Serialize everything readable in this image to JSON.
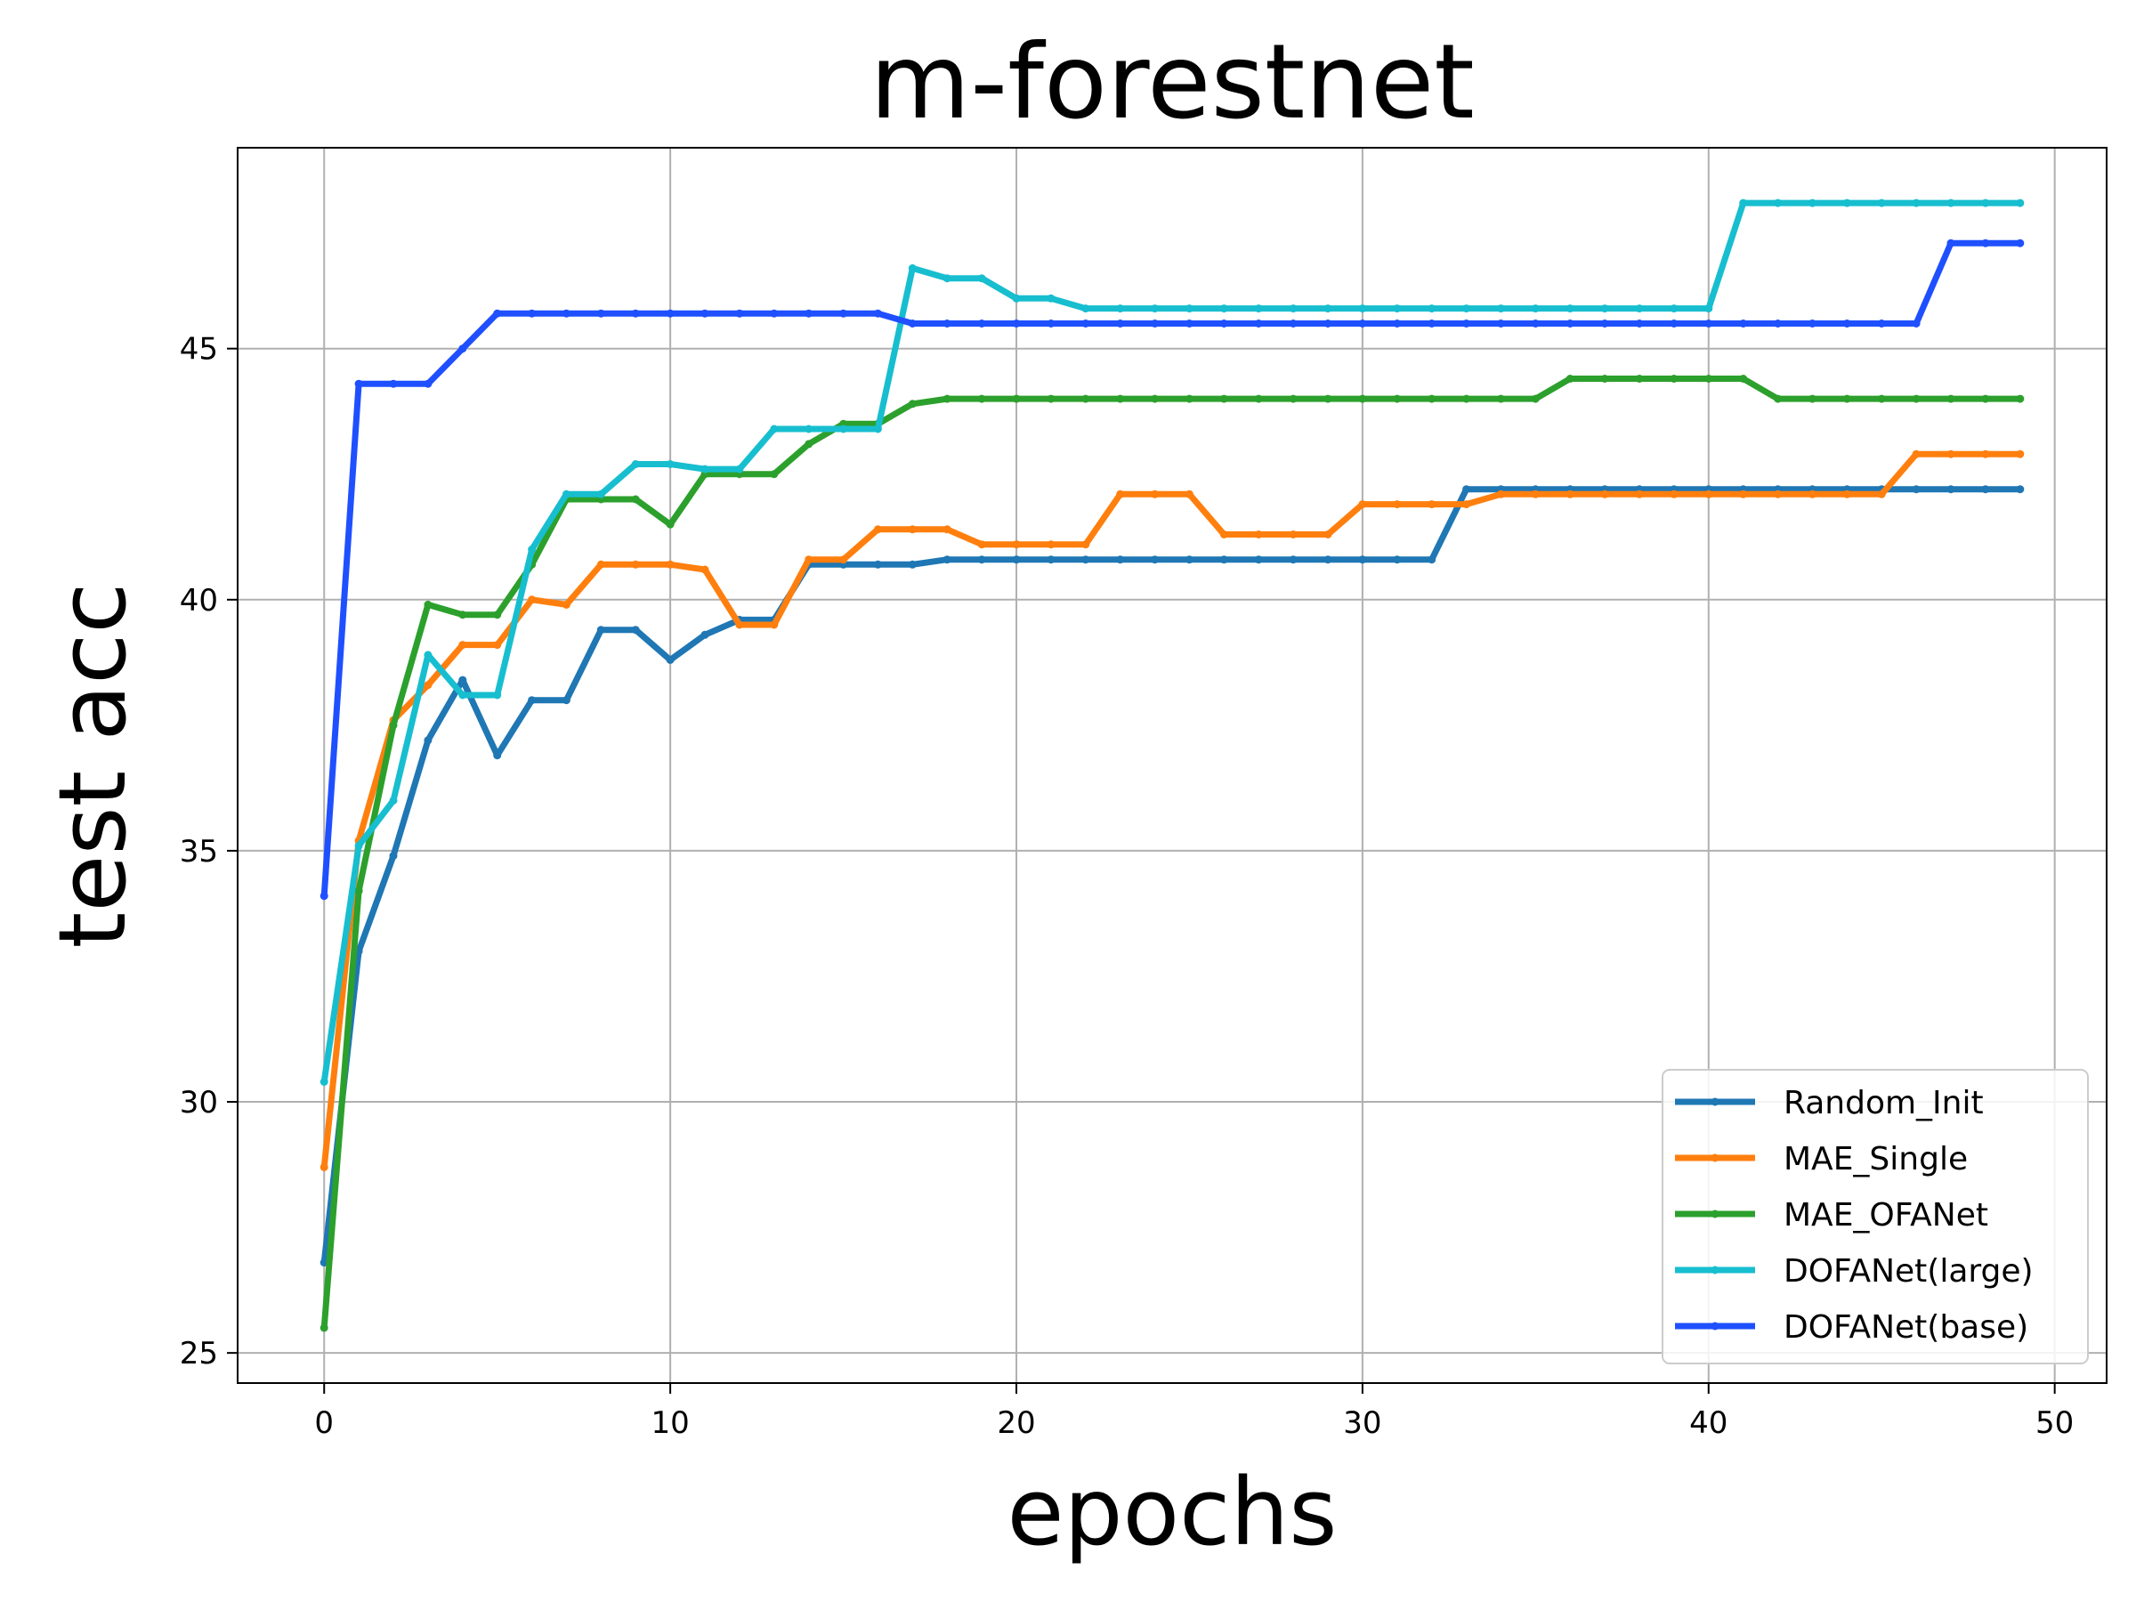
{
  "chart_data": {
    "type": "line",
    "title": "m-forestnet",
    "xlabel": "epochs",
    "ylabel": "test acc",
    "xlim": [
      -2.5,
      51.5
    ],
    "ylim": [
      24.4,
      49.0
    ],
    "xticks": [
      0,
      10,
      20,
      30,
      40,
      50
    ],
    "yticks": [
      25,
      30,
      35,
      40,
      45
    ],
    "grid": true,
    "legend_position": "lower-right",
    "x": [
      0,
      1,
      2,
      3,
      4,
      5,
      6,
      7,
      8,
      9,
      10,
      11,
      12,
      13,
      14,
      15,
      16,
      17,
      18,
      19,
      20,
      21,
      22,
      23,
      24,
      25,
      26,
      27,
      28,
      29,
      30,
      31,
      32,
      33,
      34,
      35,
      36,
      37,
      38,
      39,
      40,
      41,
      42,
      43,
      44,
      45,
      46,
      47,
      48,
      49
    ],
    "series": [
      {
        "name": "Random_Init",
        "color": "#1f77b4",
        "values": [
          26.8,
          33.0,
          34.9,
          37.2,
          38.4,
          36.9,
          38.0,
          38.0,
          39.4,
          39.4,
          38.8,
          39.3,
          39.6,
          39.6,
          40.7,
          40.7,
          40.7,
          40.7,
          40.8,
          40.8,
          40.8,
          40.8,
          40.8,
          40.8,
          40.8,
          40.8,
          40.8,
          40.8,
          40.8,
          40.8,
          40.8,
          40.8,
          40.8,
          42.2,
          42.2,
          42.2,
          42.2,
          42.2,
          42.2,
          42.2,
          42.2,
          42.2,
          42.2,
          42.2,
          42.2,
          42.2,
          42.2,
          42.2,
          42.2,
          42.2
        ]
      },
      {
        "name": "MAE_Single",
        "color": "#ff7f0e",
        "values": [
          28.7,
          35.2,
          37.6,
          38.3,
          39.1,
          39.1,
          40.0,
          39.9,
          40.7,
          40.7,
          40.7,
          40.6,
          39.5,
          39.5,
          40.8,
          40.8,
          41.4,
          41.4,
          41.4,
          41.1,
          41.1,
          41.1,
          41.1,
          42.1,
          42.1,
          42.1,
          41.3,
          41.3,
          41.3,
          41.3,
          41.9,
          41.9,
          41.9,
          41.9,
          42.1,
          42.1,
          42.1,
          42.1,
          42.1,
          42.1,
          42.1,
          42.1,
          42.1,
          42.1,
          42.1,
          42.1,
          42.9,
          42.9,
          42.9,
          42.9
        ]
      },
      {
        "name": "MAE_OFANet",
        "color": "#2ca02c",
        "values": [
          25.5,
          34.2,
          37.5,
          39.9,
          39.7,
          39.7,
          40.7,
          42.0,
          42.0,
          42.0,
          41.5,
          42.5,
          42.5,
          42.5,
          43.1,
          43.5,
          43.5,
          43.9,
          44.0,
          44.0,
          44.0,
          44.0,
          44.0,
          44.0,
          44.0,
          44.0,
          44.0,
          44.0,
          44.0,
          44.0,
          44.0,
          44.0,
          44.0,
          44.0,
          44.0,
          44.0,
          44.4,
          44.4,
          44.4,
          44.4,
          44.4,
          44.4,
          44.0,
          44.0,
          44.0,
          44.0,
          44.0,
          44.0,
          44.0,
          44.0
        ]
      },
      {
        "name": "DOFANet(large)",
        "color": "#17becf",
        "values": [
          30.4,
          35.1,
          36.0,
          38.9,
          38.1,
          38.1,
          41.0,
          42.1,
          42.1,
          42.7,
          42.7,
          42.6,
          42.6,
          43.4,
          43.4,
          43.4,
          43.4,
          46.6,
          46.4,
          46.4,
          46.0,
          46.0,
          45.8,
          45.8,
          45.8,
          45.8,
          45.8,
          45.8,
          45.8,
          45.8,
          45.8,
          45.8,
          45.8,
          45.8,
          45.8,
          45.8,
          45.8,
          45.8,
          45.8,
          45.8,
          45.8,
          47.9,
          47.9,
          47.9,
          47.9,
          47.9,
          47.9,
          47.9,
          47.9,
          47.9
        ]
      },
      {
        "name": "DOFANet(base)",
        "color": "#1f50ff",
        "values": [
          34.1,
          44.3,
          44.3,
          44.3,
          45.0,
          45.7,
          45.7,
          45.7,
          45.7,
          45.7,
          45.7,
          45.7,
          45.7,
          45.7,
          45.7,
          45.7,
          45.7,
          45.5,
          45.5,
          45.5,
          45.5,
          45.5,
          45.5,
          45.5,
          45.5,
          45.5,
          45.5,
          45.5,
          45.5,
          45.5,
          45.5,
          45.5,
          45.5,
          45.5,
          45.5,
          45.5,
          45.5,
          45.5,
          45.5,
          45.5,
          45.5,
          45.5,
          45.5,
          45.5,
          45.5,
          45.5,
          45.5,
          47.1,
          47.1,
          47.1
        ]
      }
    ]
  }
}
